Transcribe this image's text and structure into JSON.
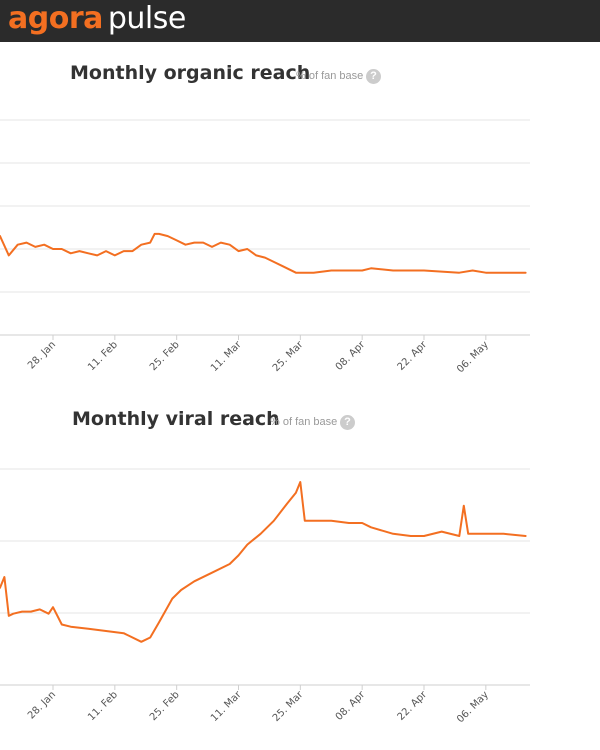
{
  "header": {
    "logo_part1": "agora",
    "logo_part2": "pulse"
  },
  "colors": {
    "line": "#f36f21",
    "grid": "#e6e6e6",
    "header_bg": "#2b2b2b"
  },
  "chart_data": [
    {
      "type": "line",
      "title": "Monthly organic reach",
      "subtitle": "% of fan base",
      "help_icon": "?",
      "grid": true,
      "legend": "none",
      "x_range": [
        "2013-01-16",
        "2013-05-16"
      ],
      "y_range": [
        0,
        10
      ],
      "x_ticks": [
        "28. Jan",
        "11. Feb",
        "25. Feb",
        "11. Mar",
        "25. Mar",
        "08. Apr",
        "22. Apr",
        "06. May"
      ],
      "series": [
        {
          "x": [
            "2013-01-16",
            "2013-01-18",
            "2013-01-20",
            "2013-01-22",
            "2013-01-24",
            "2013-01-26",
            "2013-01-28",
            "2013-01-30",
            "2013-02-01",
            "2013-02-03",
            "2013-02-05",
            "2013-02-07",
            "2013-02-09",
            "2013-02-11",
            "2013-02-13",
            "2013-02-15",
            "2013-02-17",
            "2013-02-19",
            "2013-02-20",
            "2013-02-21",
            "2013-02-23",
            "2013-02-25",
            "2013-02-27",
            "2013-03-01",
            "2013-03-03",
            "2013-03-05",
            "2013-03-07",
            "2013-03-09",
            "2013-03-11",
            "2013-03-13",
            "2013-03-15",
            "2013-03-17",
            "2013-03-19",
            "2013-03-21",
            "2013-03-24",
            "2013-03-28",
            "2013-04-01",
            "2013-04-05",
            "2013-04-08",
            "2013-04-10",
            "2013-04-15",
            "2013-04-22",
            "2013-04-30",
            "2013-05-03",
            "2013-05-06",
            "2013-05-10",
            "2013-05-15"
          ],
          "y": [
            4.6,
            3.7,
            4.2,
            4.3,
            4.1,
            4.2,
            4.0,
            4.0,
            3.8,
            3.9,
            3.8,
            3.7,
            3.9,
            3.7,
            3.9,
            3.9,
            4.2,
            4.3,
            4.7,
            4.7,
            4.6,
            4.4,
            4.2,
            4.3,
            4.3,
            4.1,
            4.3,
            4.2,
            3.9,
            4.0,
            3.7,
            3.6,
            3.4,
            3.2,
            2.9,
            2.9,
            3.0,
            3.0,
            3.0,
            3.1,
            3.0,
            3.0,
            2.9,
            3.0,
            2.9,
            2.9,
            2.9
          ]
        }
      ]
    },
    {
      "type": "line",
      "title": "Monthly viral reach",
      "subtitle": "% of fan base",
      "help_icon": "?",
      "grid": true,
      "legend": "none",
      "x_range": [
        "2013-01-16",
        "2013-05-16"
      ],
      "y_range": [
        0,
        10
      ],
      "x_ticks": [
        "28. Jan",
        "11. Feb",
        "25. Feb",
        "11. Mar",
        "25. Mar",
        "08. Apr",
        "22. Apr",
        "06. May"
      ],
      "series": [
        {
          "x": [
            "2013-01-16",
            "2013-01-17",
            "2013-01-18",
            "2013-01-19",
            "2013-01-21",
            "2013-01-23",
            "2013-01-25",
            "2013-01-27",
            "2013-01-28",
            "2013-01-30",
            "2013-02-01",
            "2013-02-05",
            "2013-02-09",
            "2013-02-13",
            "2013-02-17",
            "2013-02-19",
            "2013-02-21",
            "2013-02-24",
            "2013-02-26",
            "2013-03-01",
            "2013-03-05",
            "2013-03-09",
            "2013-03-11",
            "2013-03-13",
            "2013-03-16",
            "2013-03-19",
            "2013-03-22",
            "2013-03-24",
            "2013-03-25",
            "2013-03-26",
            "2013-03-28",
            "2013-04-01",
            "2013-04-05",
            "2013-04-08",
            "2013-04-10",
            "2013-04-15",
            "2013-04-19",
            "2013-04-22",
            "2013-04-26",
            "2013-04-30",
            "2013-05-01",
            "2013-05-02",
            "2013-05-04",
            "2013-05-06",
            "2013-05-10",
            "2013-05-15"
          ],
          "y": [
            4.5,
            5.0,
            3.2,
            3.3,
            3.4,
            3.4,
            3.5,
            3.3,
            3.6,
            2.8,
            2.7,
            2.6,
            2.5,
            2.4,
            2.0,
            2.2,
            2.9,
            4.0,
            4.4,
            4.8,
            5.2,
            5.6,
            6.0,
            6.5,
            7.0,
            7.6,
            8.4,
            8.9,
            9.4,
            7.6,
            7.6,
            7.6,
            7.5,
            7.5,
            7.3,
            7.0,
            6.9,
            6.9,
            7.1,
            6.9,
            8.3,
            7.0,
            7.0,
            7.0,
            7.0,
            6.9
          ]
        }
      ]
    }
  ]
}
